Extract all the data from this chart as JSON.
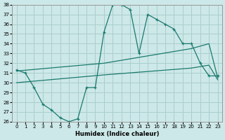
{
  "xlabel": "Humidex (Indice chaleur)",
  "bg_color": "#cde8e8",
  "grid_color": "#aacece",
  "line_color": "#1a7a6e",
  "xlim": [
    -0.5,
    23.5
  ],
  "ylim": [
    26,
    38
  ],
  "xticks": [
    0,
    1,
    2,
    3,
    4,
    5,
    6,
    7,
    8,
    9,
    10,
    11,
    12,
    13,
    14,
    15,
    16,
    17,
    18,
    19,
    20,
    21,
    22,
    23
  ],
  "yticks": [
    26,
    27,
    28,
    29,
    30,
    31,
    32,
    33,
    34,
    35,
    36,
    37,
    38
  ],
  "line1_x": [
    0,
    1,
    2,
    3,
    4,
    5,
    6,
    7,
    8,
    9,
    10,
    11,
    12,
    13,
    14,
    15,
    16,
    17,
    18,
    19,
    20,
    21,
    22,
    23
  ],
  "line1_y": [
    31.3,
    31.0,
    29.5,
    27.8,
    27.2,
    26.4,
    26.0,
    26.3,
    29.5,
    29.5,
    35.2,
    38.0,
    38.0,
    37.5,
    33.0,
    37.0,
    36.5,
    36.0,
    35.5,
    34.0,
    34.0,
    32.0,
    30.7,
    30.7
  ],
  "line2_x": [
    0,
    10,
    20,
    22,
    23
  ],
  "line2_y": [
    31.2,
    32.0,
    33.5,
    34.0,
    30.5
  ],
  "line3_x": [
    0,
    10,
    20,
    22,
    23
  ],
  "line3_y": [
    30.0,
    30.8,
    31.5,
    31.8,
    30.3
  ]
}
